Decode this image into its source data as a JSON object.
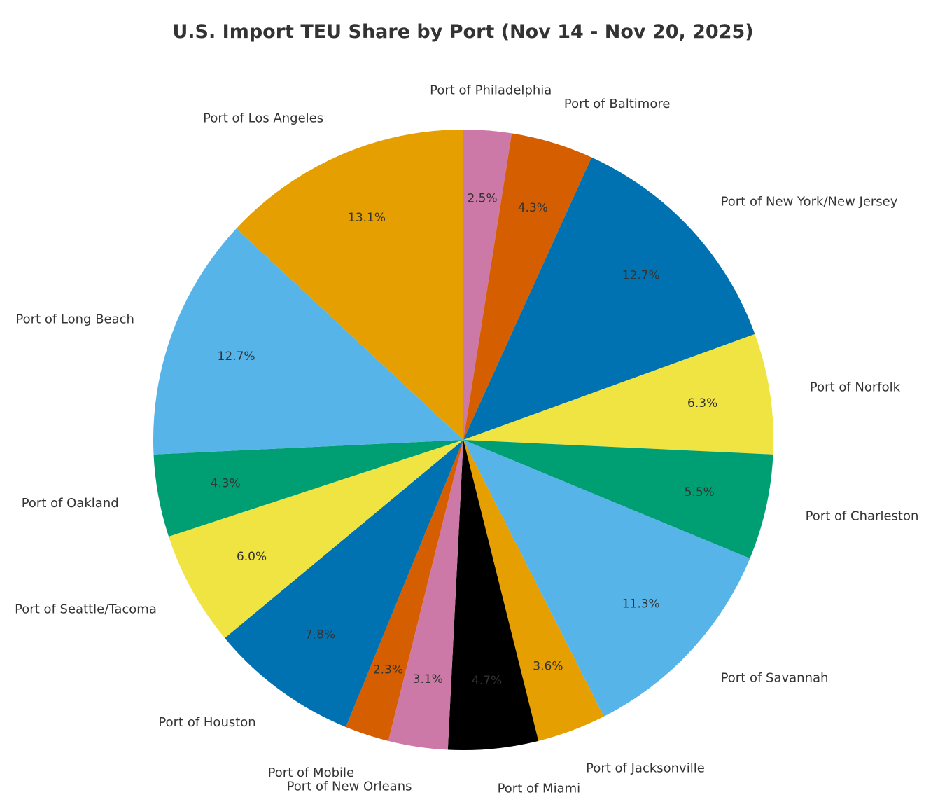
{
  "chart_data": {
    "type": "pie",
    "title": "U.S. Import TEU Share by Port (Nov 14 - Nov 20, 2025)",
    "start_angle_deg": 90,
    "direction": "clockwise",
    "slices": [
      {
        "label": "Port of Philadelphia",
        "value": 2.5,
        "pct_text": "2.5%",
        "color": "#CC79A7"
      },
      {
        "label": "Port of Baltimore",
        "value": 4.3,
        "pct_text": "4.3%",
        "color": "#D55E00"
      },
      {
        "label": "Port of New York/New Jersey",
        "value": 12.7,
        "pct_text": "12.7%",
        "color": "#0072B2"
      },
      {
        "label": "Port of Norfolk",
        "value": 6.3,
        "pct_text": "6.3%",
        "color": "#F0E442"
      },
      {
        "label": "Port of Charleston",
        "value": 5.5,
        "pct_text": "5.5%",
        "color": "#009E73"
      },
      {
        "label": "Port of Savannah",
        "value": 11.3,
        "pct_text": "11.3%",
        "color": "#56B4E9"
      },
      {
        "label": "Port of Jacksonville",
        "value": 3.6,
        "pct_text": "3.6%",
        "color": "#E69F00"
      },
      {
        "label": "Port of Miami",
        "value": 4.7,
        "pct_text": "4.7%",
        "color": "#000000"
      },
      {
        "label": "Port of New Orleans",
        "value": 3.1,
        "pct_text": "3.1%",
        "color": "#CC79A7"
      },
      {
        "label": "Port of Mobile",
        "value": 2.3,
        "pct_text": "2.3%",
        "color": "#D55E00"
      },
      {
        "label": "Port of Houston",
        "value": 7.8,
        "pct_text": "7.8%",
        "color": "#0072B2"
      },
      {
        "label": "Port of Seattle/Tacoma",
        "value": 6.0,
        "pct_text": "6.0%",
        "color": "#F0E442"
      },
      {
        "label": "Port of Oakland",
        "value": 4.3,
        "pct_text": "4.3%",
        "color": "#009E73"
      },
      {
        "label": "Port of Long Beach",
        "value": 12.7,
        "pct_text": "12.7%",
        "color": "#56B4E9"
      },
      {
        "label": "Port of Los Angeles",
        "value": 13.1,
        "pct_text": "13.1%",
        "color": "#E69F00"
      }
    ]
  }
}
